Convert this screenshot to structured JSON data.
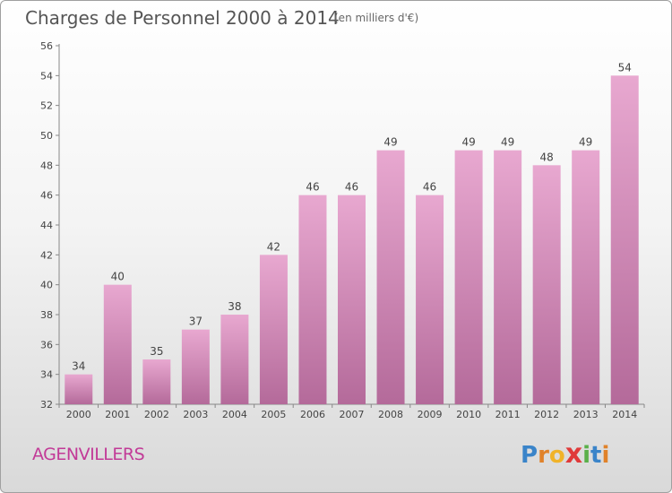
{
  "title": "Charges de Personnel 2000 à 2014",
  "subtitle": "(en milliers d'€)",
  "commune": "AGENVILLERS",
  "logo": {
    "letters": [
      "P",
      "r",
      "o",
      "x",
      "i",
      "t",
      "i"
    ],
    "colors": [
      "#3a84c9",
      "#e0822a",
      "#f0b32a",
      "#e03a3a",
      "#5ab04a",
      "#3a84c9",
      "#e0822a"
    ]
  },
  "colors": {
    "bar_top": "#e8a8d0",
    "bar_bottom": "#b46a9a",
    "commune_text": "#c23a97"
  },
  "chart_data": {
    "type": "bar",
    "categories": [
      "2000",
      "2001",
      "2002",
      "2003",
      "2004",
      "2005",
      "2006",
      "2007",
      "2008",
      "2009",
      "2010",
      "2011",
      "2012",
      "2013",
      "2014"
    ],
    "values": [
      34,
      40,
      35,
      37,
      38,
      42,
      46,
      46,
      49,
      46,
      49,
      49,
      48,
      49,
      54
    ],
    "ylim": [
      32,
      56
    ],
    "yticks": [
      32,
      34,
      36,
      38,
      40,
      42,
      44,
      46,
      48,
      50,
      52,
      54,
      56
    ],
    "grid": false,
    "data_labels": true
  }
}
